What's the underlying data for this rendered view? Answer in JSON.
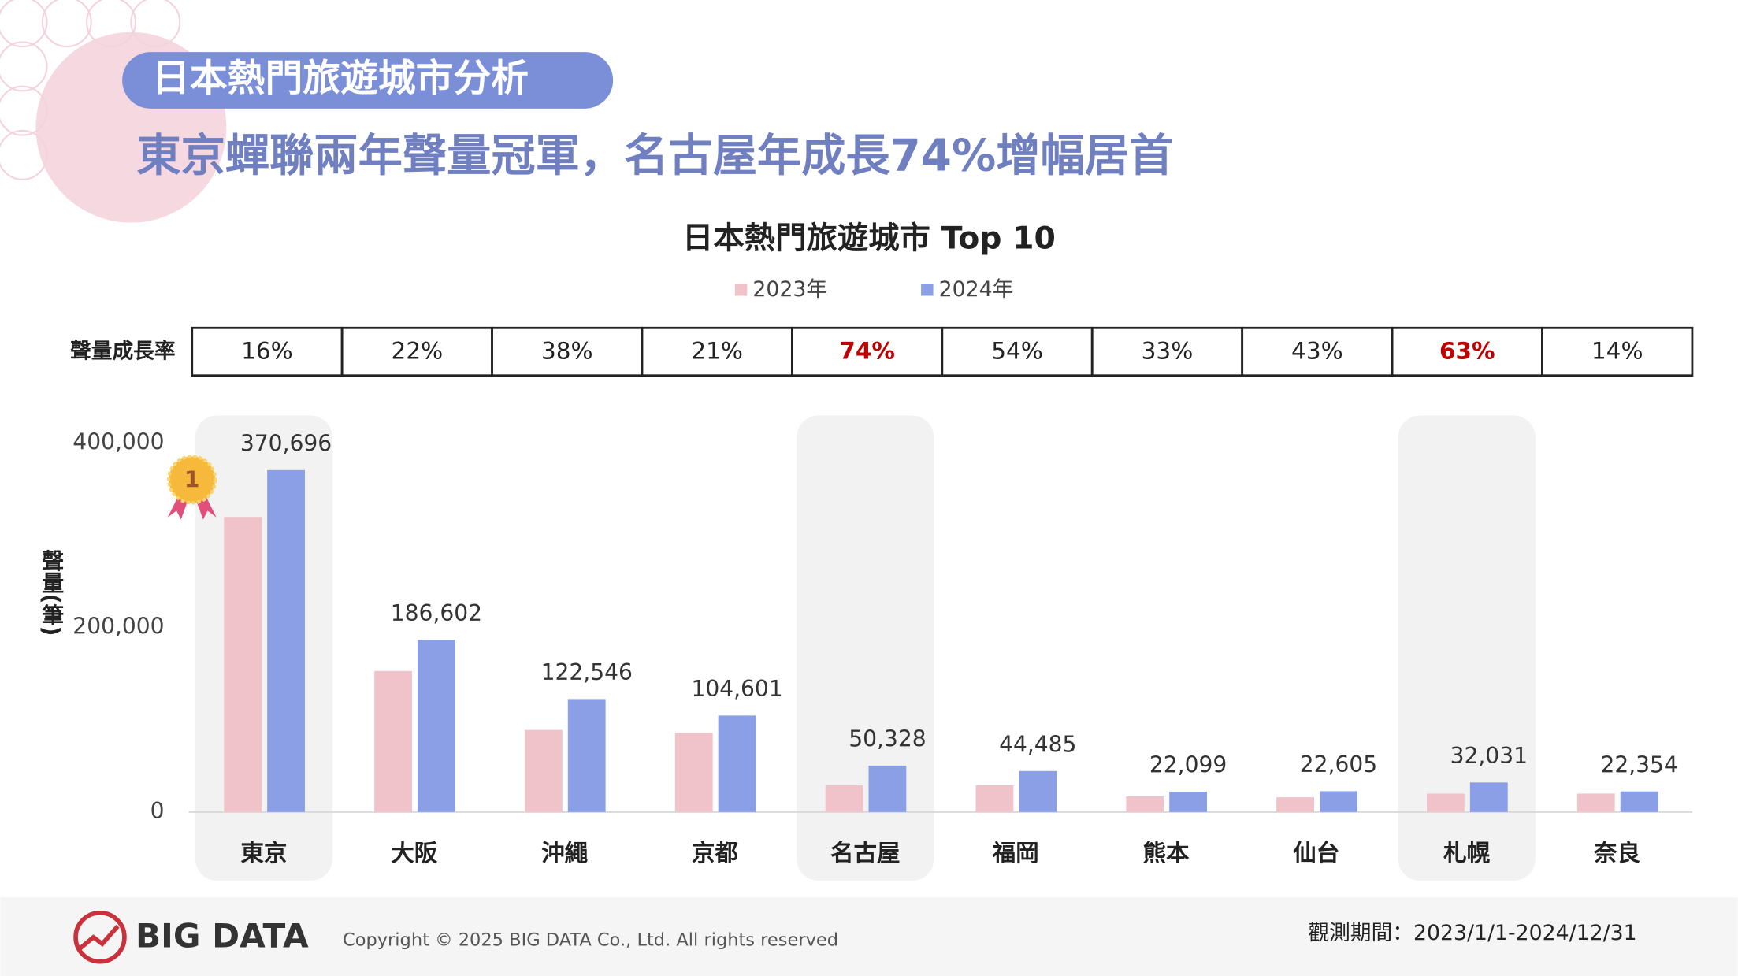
{
  "header": {
    "tag": "日本熱門旅遊城市分析",
    "headline": "東京蟬聯兩年聲量冠軍，名古屋年成長74%增幅居首"
  },
  "chart_data": {
    "type": "bar",
    "title": "日本熱門旅遊城市 Top 10",
    "y_label": "聲量(筆)",
    "categories": [
      "東京",
      "大阪",
      "沖繩",
      "京都",
      "名古屋",
      "福岡",
      "熊本",
      "仙台",
      "札幌",
      "奈良"
    ],
    "category_backgrounds": [
      "#f2f2f2",
      "transparent",
      "transparent",
      "transparent",
      "#f2f2f2",
      "transparent",
      "transparent",
      "transparent",
      "#f2f2f2",
      "transparent"
    ],
    "series": [
      {
        "name": "2023年",
        "color": "#f0c3cb",
        "values": [
          320000,
          153000,
          89000,
          86000,
          29000,
          29000,
          17000,
          16000,
          20000,
          20000
        ]
      },
      {
        "name": "2024年",
        "color": "#8a9fe6",
        "values": [
          370696,
          186602,
          122546,
          104601,
          50328,
          44485,
          22099,
          22605,
          32031,
          22354
        ],
        "value_labels": [
          "370,696",
          "186,602",
          "122,546",
          "104,601",
          "50,328",
          "44,485",
          "22,099",
          "22,605",
          "32,031",
          "22,354"
        ]
      }
    ],
    "ylim": [
      0,
      400000
    ],
    "yticks": [
      {
        "value": 0,
        "label": "0"
      },
      {
        "value": 200000,
        "label": "200,000"
      },
      {
        "value": 400000,
        "label": "400,000"
      }
    ],
    "grid": false,
    "medal": "1",
    "growth": {
      "label": "聲量成長率",
      "values": [
        16,
        22,
        38,
        21,
        74,
        54,
        33,
        43,
        63,
        14
      ],
      "value_labels": [
        "16%",
        "22%",
        "38%",
        "21%",
        "74%",
        "54%",
        "33%",
        "43%",
        "63%",
        "14%"
      ],
      "colors": [
        "#222222",
        "#222222",
        "#222222",
        "#222222",
        "#c00000",
        "#222222",
        "#222222",
        "#222222",
        "#c00000",
        "#222222"
      ]
    }
  },
  "footer": {
    "logo": "BIG DATA",
    "copyright": "Copyright © 2025 BIG DATA Co., Ltd. All rights reserved",
    "period": "觀測期間：2023/1/1-2024/12/31"
  }
}
